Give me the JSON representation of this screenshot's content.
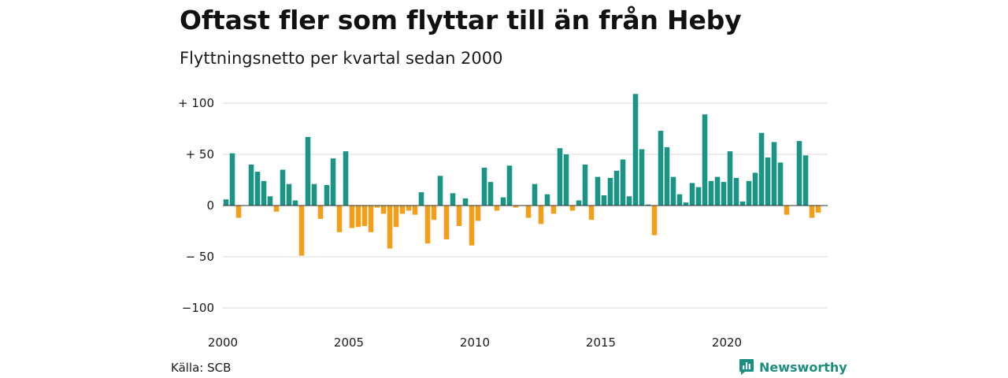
{
  "header": {
    "title": "Oftast fler som flyttar till än från Heby",
    "subtitle": "Flyttningsnetto per kvartal sedan 2000"
  },
  "footer": {
    "source": "Källa: SCB",
    "brand": "Newsworthy",
    "brand_icon": "newsworthy-logo-icon"
  },
  "colors": {
    "positive": "#1b9385",
    "negative": "#f29f1c",
    "grid": "#d9d9d9",
    "zero_line": "#333333",
    "brand": "#1c8e80"
  },
  "chart_data": {
    "type": "bar",
    "title": "Oftast fler som flyttar till än från Heby",
    "subtitle": "Flyttningsnetto per kvartal sedan 2000",
    "xlabel": "",
    "ylabel": "",
    "ylim": [
      -100,
      115
    ],
    "yticks": [
      100,
      50,
      0,
      -50,
      -100
    ],
    "ytick_labels": [
      "+ 100",
      "+  50",
      "0",
      "− 50",
      "−100"
    ],
    "xticks": [
      2000,
      2005,
      2010,
      2015,
      2020
    ],
    "xtick_labels": [
      "2000",
      "2005",
      "2010",
      "2015",
      "2020"
    ],
    "x_start": 2000,
    "x_end": 2023.75,
    "periods_per_year": 4,
    "grid": true,
    "values": [
      6,
      51,
      -12,
      0,
      40,
      33,
      24,
      9,
      -6,
      35,
      21,
      5,
      -49,
      67,
      21,
      -13,
      20,
      46,
      -26,
      53,
      -22,
      -21,
      -20,
      -26,
      -2,
      -8,
      -42,
      -21,
      -8,
      -5,
      -9,
      13,
      -37,
      -14,
      29,
      -33,
      12,
      -20,
      7,
      -39,
      -15,
      37,
      23,
      -5,
      8,
      39,
      -2,
      0,
      -12,
      21,
      -18,
      11,
      -8,
      56,
      50,
      -5,
      5,
      40,
      -14,
      28,
      10,
      27,
      34,
      45,
      9,
      109,
      55,
      1,
      -29,
      73,
      57,
      28,
      11,
      3,
      22,
      18,
      89,
      24,
      28,
      23,
      53,
      27,
      4,
      24,
      32,
      71,
      47,
      62,
      42,
      -9,
      0,
      63,
      49,
      -12,
      -7
    ]
  }
}
